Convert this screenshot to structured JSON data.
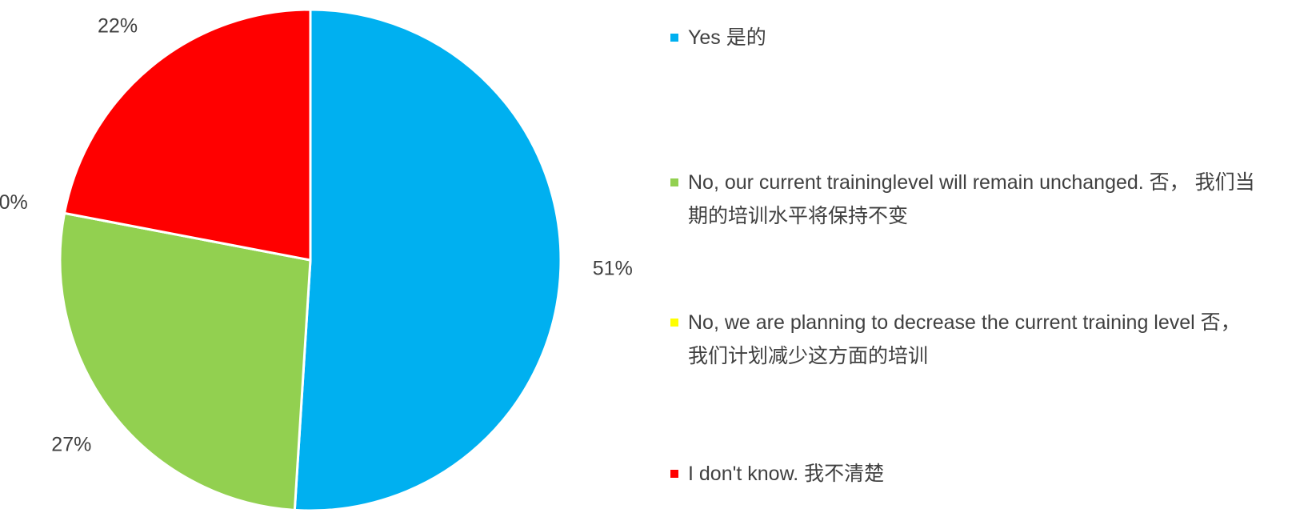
{
  "chart_data": {
    "type": "pie",
    "categories": [
      "Yes 是的",
      "No, our current traininglevel will remain unchanged. 否， 我们当期的培训水平将保持不变",
      "No, we are planning to decrease the current training level 否，我们计划减少这方面的培训",
      "I don't know. 我不清楚"
    ],
    "values": [
      51,
      27,
      0,
      22
    ],
    "value_labels": [
      "51%",
      "27%",
      "0%",
      "22%"
    ],
    "colors": [
      "#00b0f0",
      "#92d050",
      "#ffff00",
      "#ff0000"
    ],
    "legend": "right"
  }
}
